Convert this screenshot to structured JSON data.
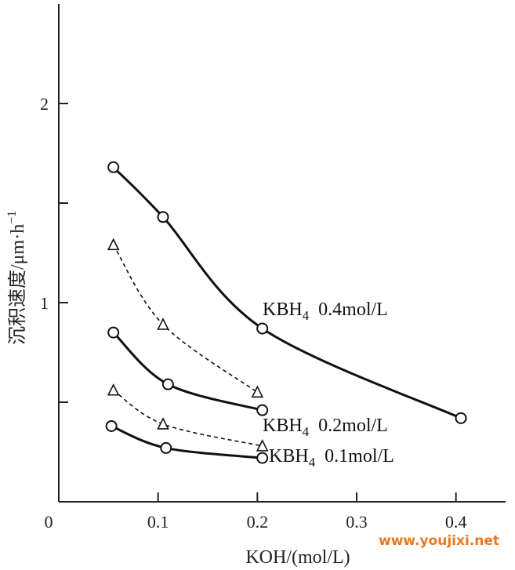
{
  "chart_data": {
    "type": "line",
    "xlabel": "KOH/(mol/L)",
    "ylabel": "沉积速度/μm·h⁻¹",
    "ylabel_main": "沉积速度/μm·h",
    "ylabel_sup": "−1",
    "xlim": [
      0,
      0.45
    ],
    "ylim": [
      0,
      2.5
    ],
    "x_ticks": [
      0,
      0.1,
      0.2,
      0.3,
      0.4
    ],
    "x_tick_labels": [
      "0",
      "0.1",
      "0.2",
      "0.3",
      "0.4"
    ],
    "y_ticks": [
      0.5,
      1,
      1.5,
      2
    ],
    "y_tick_labels": [
      {
        "value": 1,
        "label": "1"
      },
      {
        "value": 2,
        "label": "2"
      }
    ],
    "series": [
      {
        "name": "KBH4 0.4mol/L",
        "label_main": "KBH",
        "label_sub": "4",
        "label_rest": "0.4mol/L",
        "marker": "circle",
        "style": "solid",
        "x": [
          0.055,
          0.105,
          0.205,
          0.405
        ],
        "y": [
          1.68,
          1.43,
          0.87,
          0.42
        ]
      },
      {
        "name": "KBH4 0.2mol/L",
        "label_main": "KBH",
        "label_sub": "4",
        "label_rest": "0.2mol/L",
        "marker": "circle",
        "style": "solid",
        "x": [
          0.055,
          0.11,
          0.205
        ],
        "y": [
          0.85,
          0.59,
          0.46
        ]
      },
      {
        "name": "KBH4 0.1mol/L",
        "label_main": "KBH",
        "label_sub": "4",
        "label_rest": "0.1mol/L",
        "marker": "circle",
        "style": "solid",
        "x": [
          0.053,
          0.108,
          0.205
        ],
        "y": [
          0.38,
          0.27,
          0.22
        ]
      },
      {
        "name": "triangle-upper",
        "marker": "triangle",
        "style": "dashed",
        "x": [
          0.055,
          0.105,
          0.2
        ],
        "y": [
          1.29,
          0.89,
          0.55
        ]
      },
      {
        "name": "triangle-lower",
        "marker": "triangle",
        "style": "dashed",
        "x": [
          0.055,
          0.105,
          0.205
        ],
        "y": [
          0.56,
          0.39,
          0.28
        ]
      }
    ]
  },
  "watermark": {
    "text": "www.youjixi.net",
    "color": "#e8781e"
  }
}
